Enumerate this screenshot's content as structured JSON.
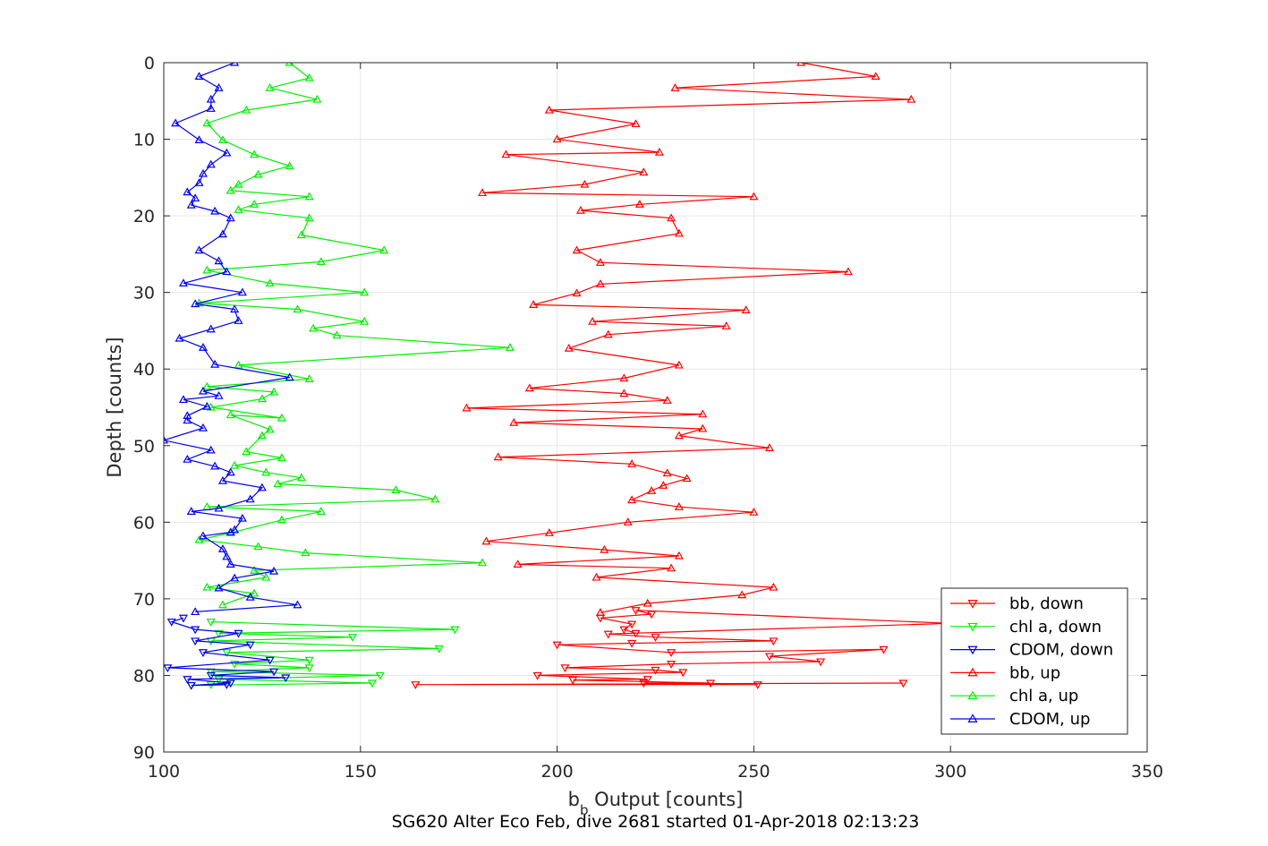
{
  "chart_data": {
    "type": "line",
    "title": "",
    "xlabel_main": "b",
    "xlabel_sub": "b",
    "xlabel_rest": " Output [counts]",
    "ylabel": "Depth [counts]",
    "caption": "SG620 Alter Eco Feb, dive 2681 started 01-Apr-2018 02:13:23",
    "xlim": [
      100,
      350
    ],
    "ylim": [
      0,
      90
    ],
    "y_reversed": true,
    "grid": true,
    "legend_position": "bottom-right",
    "x_ticks": [
      "100",
      "150",
      "200",
      "250",
      "300",
      "350"
    ],
    "y_ticks": [
      "0",
      "10",
      "20",
      "30",
      "40",
      "50",
      "60",
      "70",
      "80",
      "90"
    ],
    "colors": {
      "bb": "#ff0000",
      "chl": "#00ee00",
      "cdom": "#0000ee",
      "grid": "#e6e6e6",
      "axis": "#262626"
    },
    "series": [
      {
        "name": "bb, down",
        "marker": "triangle-down",
        "color": "#ff0000",
        "points": [
          [
            220,
            74.5
          ],
          [
            217,
            74
          ],
          [
            219,
            73.3
          ],
          [
            211,
            72.5
          ],
          [
            224,
            72
          ],
          [
            220,
            71.5
          ],
          [
            300,
            73.2
          ],
          [
            213,
            74.6
          ],
          [
            225,
            75
          ],
          [
            255,
            75.5
          ],
          [
            219,
            75.8
          ],
          [
            200,
            76
          ],
          [
            229,
            77
          ],
          [
            283,
            76.6
          ],
          [
            254,
            77.5
          ],
          [
            267,
            78.2
          ],
          [
            229,
            78.5
          ],
          [
            202,
            79
          ],
          [
            225,
            79.3
          ],
          [
            232,
            79.6
          ],
          [
            195,
            80
          ],
          [
            223,
            80.5
          ],
          [
            204,
            80.6
          ],
          [
            239,
            81
          ],
          [
            222,
            81
          ],
          [
            251,
            81.2
          ],
          [
            164,
            81.2
          ],
          [
            288,
            81
          ]
        ]
      },
      {
        "name": "chl a, down",
        "marker": "triangle-down",
        "color": "#00ee00",
        "points": [
          [
            112,
            73
          ],
          [
            174,
            74
          ],
          [
            114,
            74.5
          ],
          [
            148,
            75
          ],
          [
            112,
            75.5
          ],
          [
            170,
            76.5
          ],
          [
            116,
            77
          ],
          [
            137,
            78
          ],
          [
            118,
            78.5
          ],
          [
            137,
            79
          ],
          [
            112,
            79.5
          ],
          [
            155,
            80
          ],
          [
            114,
            80.5
          ],
          [
            153,
            81
          ],
          [
            107,
            81.3
          ],
          [
            112,
            81.2
          ]
        ]
      },
      {
        "name": "CDOM, down",
        "marker": "triangle-down",
        "color": "#0000ee",
        "points": [
          [
            105,
            72.5
          ],
          [
            102,
            73
          ],
          [
            108,
            74
          ],
          [
            119,
            74.5
          ],
          [
            108,
            75.5
          ],
          [
            122,
            76
          ],
          [
            110,
            77
          ],
          [
            127,
            78
          ],
          [
            101,
            79
          ],
          [
            128,
            79.5
          ],
          [
            112,
            80
          ],
          [
            131,
            80.3
          ],
          [
            106,
            80.5
          ],
          [
            117,
            81
          ],
          [
            107,
            81.3
          ],
          [
            116,
            81.2
          ]
        ]
      },
      {
        "name": "bb, up",
        "marker": "triangle-up",
        "color": "#ff0000",
        "points": [
          [
            262,
            0
          ],
          [
            281,
            1.8
          ],
          [
            230,
            3.3
          ],
          [
            290,
            4.8
          ],
          [
            198,
            6.2
          ],
          [
            220,
            8
          ],
          [
            200,
            10
          ],
          [
            226,
            11.7
          ],
          [
            187,
            12
          ],
          [
            222,
            14.3
          ],
          [
            207,
            15.9
          ],
          [
            181,
            17
          ],
          [
            250,
            17.5
          ],
          [
            221,
            18.5
          ],
          [
            206,
            19.3
          ],
          [
            229,
            20.3
          ],
          [
            231,
            22.3
          ],
          [
            205,
            24.5
          ],
          [
            211,
            26.1
          ],
          [
            274,
            27.3
          ],
          [
            211,
            28.9
          ],
          [
            205,
            30.1
          ],
          [
            194,
            31.6
          ],
          [
            248,
            32.3
          ],
          [
            209,
            33.8
          ],
          [
            243,
            34.4
          ],
          [
            213,
            35.5
          ],
          [
            203,
            37.3
          ],
          [
            231,
            39.5
          ],
          [
            217,
            41.2
          ],
          [
            193,
            42.5
          ],
          [
            217,
            43.2
          ],
          [
            228,
            44.1
          ],
          [
            177,
            45.1
          ],
          [
            237,
            45.9
          ],
          [
            189,
            47
          ],
          [
            237,
            47.8
          ],
          [
            231,
            48.7
          ],
          [
            254,
            50.3
          ],
          [
            185,
            51.5
          ],
          [
            219,
            52.4
          ],
          [
            228,
            53.6
          ],
          [
            233,
            54.3
          ],
          [
            227,
            55.2
          ],
          [
            224,
            55.9
          ],
          [
            219,
            57.1
          ],
          [
            231,
            58
          ],
          [
            250,
            58.7
          ],
          [
            218,
            60
          ],
          [
            198,
            61.4
          ],
          [
            182,
            62.5
          ],
          [
            212,
            63.6
          ],
          [
            231,
            64.4
          ],
          [
            190,
            65.5
          ],
          [
            229,
            66
          ],
          [
            210,
            67.2
          ],
          [
            255,
            68.5
          ],
          [
            247,
            69.5
          ],
          [
            223,
            70.6
          ],
          [
            211,
            71.8
          ]
        ]
      },
      {
        "name": "chl a, up",
        "marker": "triangle-up",
        "color": "#00ee00",
        "points": [
          [
            132,
            0
          ],
          [
            137,
            2
          ],
          [
            127,
            3.3
          ],
          [
            139,
            4.8
          ],
          [
            121,
            6.2
          ],
          [
            111,
            7.9
          ],
          [
            115,
            10.1
          ],
          [
            123,
            12
          ],
          [
            132,
            13.5
          ],
          [
            124,
            14.6
          ],
          [
            119,
            15.9
          ],
          [
            117,
            16.7
          ],
          [
            137,
            17.5
          ],
          [
            123,
            18.5
          ],
          [
            119,
            19.2
          ],
          [
            137,
            20.3
          ],
          [
            135,
            22.5
          ],
          [
            156,
            24.5
          ],
          [
            140,
            26
          ],
          [
            111,
            27.1
          ],
          [
            127,
            28.8
          ],
          [
            151,
            30
          ],
          [
            109,
            31.4
          ],
          [
            134,
            32.2
          ],
          [
            151,
            33.8
          ],
          [
            138,
            34.7
          ],
          [
            144,
            35.6
          ],
          [
            188,
            37.2
          ],
          [
            119,
            39.5
          ],
          [
            137,
            41.3
          ],
          [
            111,
            42.3
          ],
          [
            128,
            43
          ],
          [
            125,
            43.9
          ],
          [
            112,
            45
          ],
          [
            130,
            46.4
          ],
          [
            117,
            46
          ],
          [
            127,
            47.9
          ],
          [
            125,
            48.7
          ],
          [
            121,
            50.8
          ],
          [
            130,
            51.6
          ],
          [
            118,
            52.6
          ],
          [
            126,
            53.5
          ],
          [
            135,
            54.2
          ],
          [
            129,
            55
          ],
          [
            159,
            55.8
          ],
          [
            169,
            57
          ],
          [
            111,
            58
          ],
          [
            140,
            58.6
          ],
          [
            130,
            59.7
          ],
          [
            117,
            61.4
          ],
          [
            109,
            62.3
          ],
          [
            124,
            63.2
          ],
          [
            136,
            64
          ],
          [
            181,
            65.3
          ],
          [
            123,
            66.3
          ],
          [
            126,
            67.2
          ],
          [
            111,
            68.5
          ],
          [
            123,
            69.3
          ],
          [
            115,
            70.8
          ]
        ]
      },
      {
        "name": "CDOM, up",
        "marker": "triangle-up",
        "color": "#0000ee",
        "points": [
          [
            118,
            0
          ],
          [
            109,
            1.8
          ],
          [
            114,
            3.3
          ],
          [
            112,
            4.8
          ],
          [
            112,
            6
          ],
          [
            103,
            7.9
          ],
          [
            109,
            10.1
          ],
          [
            116,
            11.8
          ],
          [
            112,
            13.3
          ],
          [
            110,
            14.5
          ],
          [
            109,
            15.7
          ],
          [
            106,
            16.9
          ],
          [
            108,
            17.7
          ],
          [
            107,
            18.6
          ],
          [
            113,
            19.4
          ],
          [
            117,
            20.3
          ],
          [
            115,
            22.4
          ],
          [
            109,
            24.5
          ],
          [
            114,
            25.9
          ],
          [
            116,
            27.3
          ],
          [
            105,
            28.8
          ],
          [
            120,
            30
          ],
          [
            108,
            31.5
          ],
          [
            118,
            32.2
          ],
          [
            119,
            33.7
          ],
          [
            112,
            34.8
          ],
          [
            104,
            36
          ],
          [
            110,
            37.2
          ],
          [
            113,
            39.4
          ],
          [
            132,
            41.1
          ],
          [
            110,
            42.9
          ],
          [
            114,
            43.5
          ],
          [
            105,
            44
          ],
          [
            111,
            44.9
          ],
          [
            106,
            46.1
          ],
          [
            106,
            46.7
          ],
          [
            110,
            47.7
          ],
          [
            100,
            49.3
          ],
          [
            112,
            50.6
          ],
          [
            106,
            51.8
          ],
          [
            113,
            52.7
          ],
          [
            117,
            53.5
          ],
          [
            115,
            54.6
          ],
          [
            125,
            55.5
          ],
          [
            122,
            57
          ],
          [
            114,
            58.2
          ],
          [
            107,
            58.6
          ],
          [
            120,
            59.5
          ],
          [
            118,
            61
          ],
          [
            117,
            61.3
          ],
          [
            110,
            61.8
          ],
          [
            115,
            63.5
          ],
          [
            116,
            64.5
          ],
          [
            117,
            65.5
          ],
          [
            128,
            66.4
          ],
          [
            118,
            67.3
          ],
          [
            114,
            68.6
          ],
          [
            122,
            69.8
          ],
          [
            134,
            70.8
          ],
          [
            108,
            71.7
          ]
        ]
      }
    ]
  }
}
